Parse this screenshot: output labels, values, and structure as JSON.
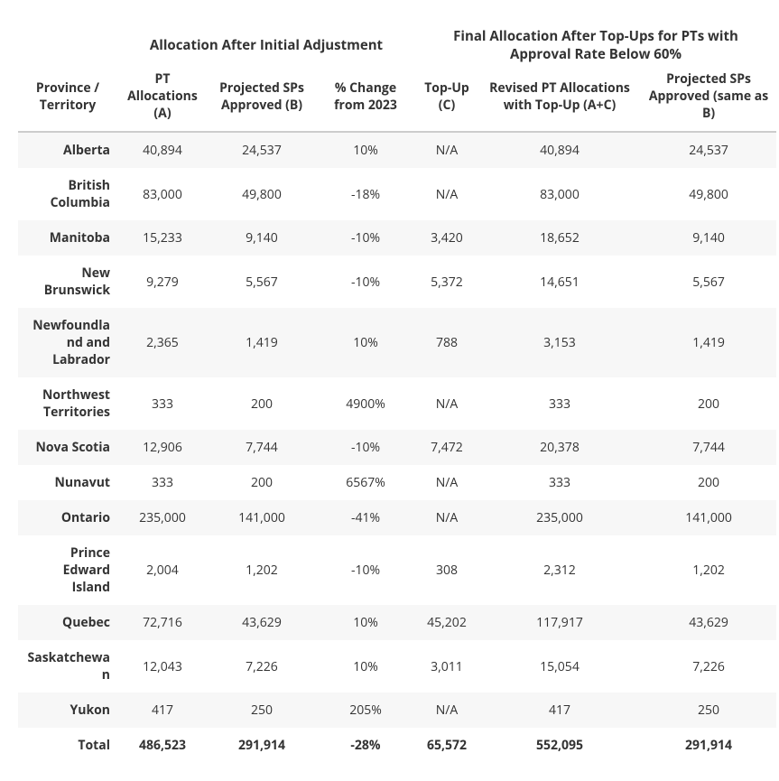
{
  "table": {
    "group_headers": {
      "blank": "",
      "initial": "Allocation After Initial Adjustment",
      "final": "Final Allocation After Top-Ups for PTs with Approval Rate Below 60%"
    },
    "columns": [
      "Province / Territory",
      "PT Allocations (A)",
      "Projected SPs Approved (B)",
      "% Change from 2023",
      "Top-Up (C)",
      "Revised PT Allocations with Top-Up (A+C)",
      "Projected SPs Approved (same as B)"
    ],
    "rows": [
      {
        "name": "Alberta",
        "a": "40,894",
        "b": "24,537",
        "pct": "10%",
        "c": "N/A",
        "ac": "40,894",
        "b2": "24,537"
      },
      {
        "name": "British Columbia",
        "a": "83,000",
        "b": "49,800",
        "pct": "-18%",
        "c": "N/A",
        "ac": "83,000",
        "b2": "49,800"
      },
      {
        "name": "Manitoba",
        "a": "15,233",
        "b": "9,140",
        "pct": "-10%",
        "c": "3,420",
        "ac": "18,652",
        "b2": "9,140"
      },
      {
        "name": "New Brunswick",
        "a": "9,279",
        "b": "5,567",
        "pct": "-10%",
        "c": "5,372",
        "ac": "14,651",
        "b2": "5,567"
      },
      {
        "name": "Newfoundland and Labrador",
        "a": "2,365",
        "b": "1,419",
        "pct": "10%",
        "c": "788",
        "ac": "3,153",
        "b2": "1,419"
      },
      {
        "name": "Northwest Territories",
        "a": "333",
        "b": "200",
        "pct": "4900%",
        "c": "N/A",
        "ac": "333",
        "b2": "200"
      },
      {
        "name": "Nova Scotia",
        "a": "12,906",
        "b": "7,744",
        "pct": "-10%",
        "c": "7,472",
        "ac": "20,378",
        "b2": "7,744"
      },
      {
        "name": "Nunavut",
        "a": "333",
        "b": "200",
        "pct": "6567%",
        "c": "N/A",
        "ac": "333",
        "b2": "200"
      },
      {
        "name": "Ontario",
        "a": "235,000",
        "b": "141,000",
        "pct": "-41%",
        "c": "N/A",
        "ac": "235,000",
        "b2": "141,000"
      },
      {
        "name": "Prince Edward Island",
        "a": "2,004",
        "b": "1,202",
        "pct": "-10%",
        "c": "308",
        "ac": "2,312",
        "b2": "1,202"
      },
      {
        "name": "Quebec",
        "a": "72,716",
        "b": "43,629",
        "pct": "10%",
        "c": "45,202",
        "ac": "117,917",
        "b2": "43,629"
      },
      {
        "name": "Saskatchewan",
        "a": "12,043",
        "b": "7,226",
        "pct": "10%",
        "c": "3,011",
        "ac": "15,054",
        "b2": "7,226"
      },
      {
        "name": "Yukon",
        "a": "417",
        "b": "250",
        "pct": "205%",
        "c": "N/A",
        "ac": "417",
        "b2": "250"
      }
    ],
    "total": {
      "name": "Total",
      "a": "486,523",
      "b": "291,914",
      "pct": "-28%",
      "c": "65,572",
      "ac": "552,095",
      "b2": "291,914"
    }
  },
  "styles": {
    "text_color": "#333333",
    "header_border": "#cccccc",
    "row_alt_bg": "#f7f7f7",
    "row_bg": "#ffffff",
    "font_family": "Open Sans, Segoe UI, Arial, sans-serif",
    "cell_fontsize": 14,
    "group_header_fontsize": 15
  }
}
